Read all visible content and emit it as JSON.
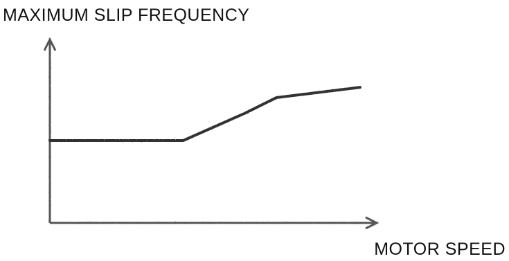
{
  "chart_data": {
    "type": "line",
    "ylabel": "MAXIMUM SLIP FREQUENCY",
    "xlabel": "MOTOR SPEED",
    "xlim": [
      0,
      100
    ],
    "ylim": [
      0,
      100
    ],
    "grid": false,
    "axis_ticks": false,
    "series": [
      {
        "x": [
          0,
          43,
          63,
          73,
          100
        ],
        "y": [
          48,
          48,
          64,
          73,
          79
        ]
      }
    ],
    "colors": {
      "line": "#333333",
      "axis": "#555555",
      "text": "#111111"
    }
  }
}
